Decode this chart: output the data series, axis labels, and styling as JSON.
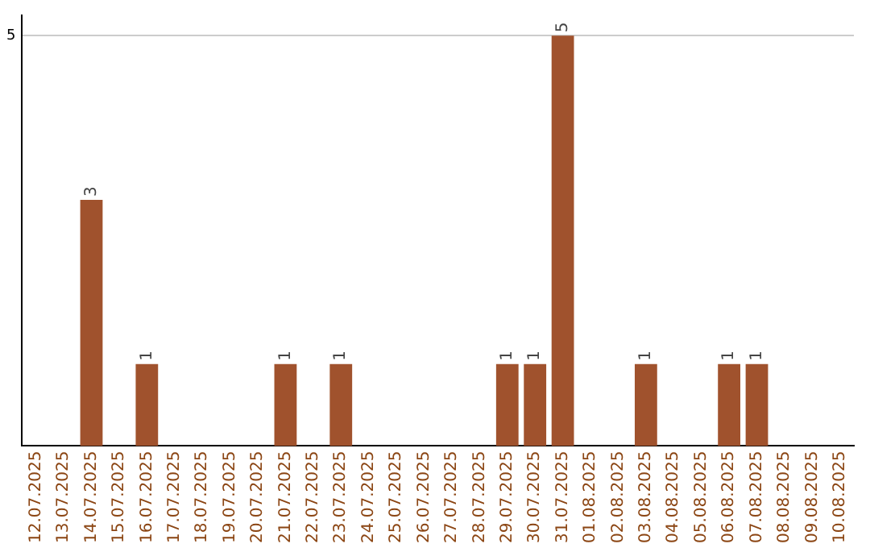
{
  "chart_data": {
    "type": "bar",
    "categories": [
      "12.07.2025",
      "13.07.2025",
      "14.07.2025",
      "15.07.2025",
      "16.07.2025",
      "17.07.2025",
      "18.07.2025",
      "19.07.2025",
      "20.07.2025",
      "21.07.2025",
      "22.07.2025",
      "23.07.2025",
      "24.07.2025",
      "25.07.2025",
      "26.07.2025",
      "27.07.2025",
      "28.07.2025",
      "29.07.2025",
      "30.07.2025",
      "31.07.2025",
      "01.08.2025",
      "02.08.2025",
      "03.08.2025",
      "04.08.2025",
      "05.08.2025",
      "06.08.2025",
      "07.08.2025",
      "08.08.2025",
      "09.08.2025",
      "10.08.2025"
    ],
    "values": [
      0,
      0,
      3,
      0,
      1,
      0,
      0,
      0,
      0,
      1,
      0,
      1,
      0,
      0,
      0,
      0,
      0,
      1,
      1,
      5,
      0,
      0,
      1,
      0,
      0,
      1,
      1,
      0,
      0,
      0
    ],
    "color": "#a0522d",
    "value_labels": [
      null,
      null,
      "3",
      null,
      "1",
      null,
      null,
      null,
      null,
      "1",
      null,
      "1",
      null,
      null,
      null,
      null,
      null,
      "1",
      "1",
      "5",
      null,
      null,
      "1",
      null,
      null,
      "1",
      "1",
      null,
      null,
      null
    ],
    "ylim": [
      0,
      5.25
    ],
    "yticks": [
      5
    ],
    "grid": "y",
    "legend": false
  }
}
